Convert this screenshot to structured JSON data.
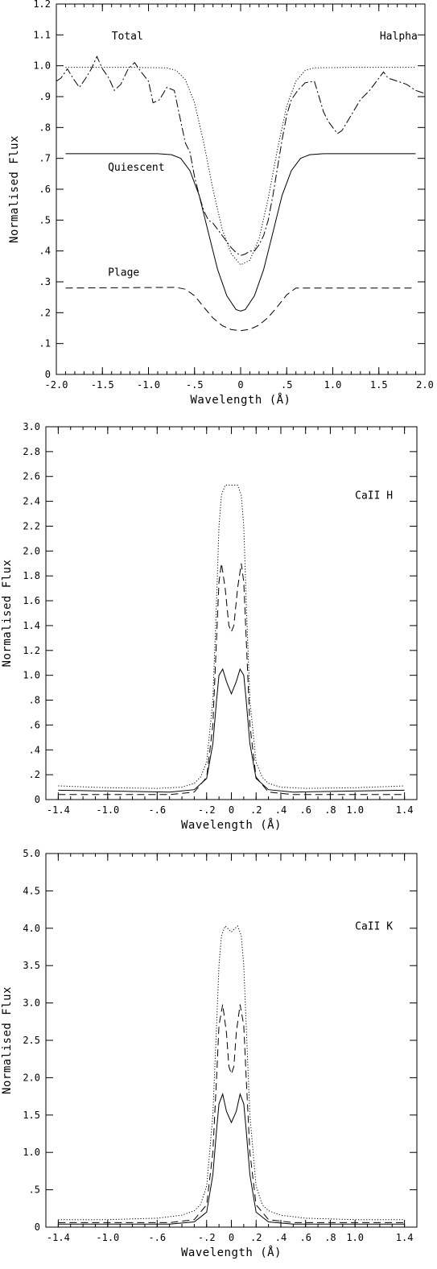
{
  "chart_data": [
    {
      "type": "line",
      "xlabel": "Wavelength (Å)",
      "ylabel": "Normalised Flux",
      "xlim": [
        -2.0,
        2.0
      ],
      "ylim": [
        0,
        1.2
      ],
      "grid": false,
      "xticks": [
        {
          "v": -2.0,
          "label": "-2.0"
        },
        {
          "v": -1.5,
          "label": "-1.5"
        },
        {
          "v": -1.0,
          "label": "-1.0"
        },
        {
          "v": -0.5,
          "label": "-.5"
        },
        {
          "v": 0,
          "label": "0"
        },
        {
          "v": 0.5,
          "label": ".5"
        },
        {
          "v": 1.0,
          "label": "1.0"
        },
        {
          "v": 1.5,
          "label": "1.5"
        },
        {
          "v": 2.0,
          "label": "2.0"
        }
      ],
      "yticks": [
        {
          "v": 0,
          "label": "0"
        },
        {
          "v": 0.1,
          "label": ".1"
        },
        {
          "v": 0.2,
          "label": ".2"
        },
        {
          "v": 0.3,
          "label": ".3"
        },
        {
          "v": 0.4,
          "label": ".4"
        },
        {
          "v": 0.5,
          "label": ".5"
        },
        {
          "v": 0.6,
          "label": ".6"
        },
        {
          "v": 0.7,
          "label": ".7"
        },
        {
          "v": 0.8,
          "label": ".8"
        },
        {
          "v": 0.9,
          "label": ".9"
        },
        {
          "v": 1.0,
          "label": "1.0"
        },
        {
          "v": 1.1,
          "label": "1.1"
        },
        {
          "v": 1.2,
          "label": "1.2"
        }
      ],
      "annotations": [
        {
          "text": "Total",
          "x": -1.4,
          "y": 1.085,
          "anchor": "start"
        },
        {
          "text": "Halpha",
          "x": 1.92,
          "y": 1.085,
          "anchor": "end"
        },
        {
          "text": "Quiescent",
          "x": -1.44,
          "y": 0.66,
          "anchor": "start"
        },
        {
          "text": "Plage",
          "x": -1.44,
          "y": 0.32,
          "anchor": "start"
        }
      ],
      "series": [
        {
          "style": "dotted",
          "x": [
            -1.9,
            -1.2,
            -0.8,
            -0.7,
            -0.6,
            -0.5,
            -0.4,
            -0.3,
            -0.2,
            -0.1,
            0,
            0.1,
            0.2,
            0.3,
            0.4,
            0.5,
            0.6,
            0.7,
            0.8,
            1.2,
            1.9
          ],
          "y": [
            0.995,
            0.995,
            0.993,
            0.985,
            0.955,
            0.88,
            0.75,
            0.6,
            0.47,
            0.39,
            0.355,
            0.37,
            0.44,
            0.57,
            0.73,
            0.87,
            0.95,
            0.985,
            0.993,
            0.995,
            0.995
          ]
        },
        {
          "style": "solid",
          "x": [
            -1.9,
            -0.9,
            -0.75,
            -0.65,
            -0.55,
            -0.45,
            -0.35,
            -0.25,
            -0.15,
            -0.05,
            0,
            0.05,
            0.15,
            0.25,
            0.35,
            0.45,
            0.55,
            0.65,
            0.75,
            0.9,
            1.9
          ],
          "y": [
            0.715,
            0.715,
            0.712,
            0.7,
            0.66,
            0.58,
            0.46,
            0.34,
            0.255,
            0.21,
            0.205,
            0.21,
            0.255,
            0.34,
            0.46,
            0.58,
            0.66,
            0.7,
            0.712,
            0.715,
            0.715
          ]
        },
        {
          "style": "dashed",
          "x": [
            -1.9,
            -0.7,
            -0.6,
            -0.5,
            -0.4,
            -0.3,
            -0.2,
            -0.1,
            0,
            0.1,
            0.2,
            0.3,
            0.4,
            0.5,
            0.6,
            1.9
          ],
          "y": [
            0.28,
            0.282,
            0.276,
            0.255,
            0.218,
            0.183,
            0.158,
            0.145,
            0.142,
            0.146,
            0.16,
            0.185,
            0.22,
            0.258,
            0.28,
            0.28
          ]
        },
        {
          "style": "dashdot",
          "x": [
            -2.0,
            -1.95,
            -1.88,
            -1.82,
            -1.75,
            -1.68,
            -1.62,
            -1.56,
            -1.5,
            -1.43,
            -1.37,
            -1.3,
            -1.22,
            -1.15,
            -1.08,
            -1.0,
            -0.95,
            -0.88,
            -0.8,
            -0.72,
            -0.65,
            -0.6,
            -0.55,
            -0.5,
            -0.45,
            -0.4,
            -0.35,
            -0.3,
            -0.25,
            -0.2,
            -0.15,
            -0.1,
            -0.05,
            0,
            0.05,
            0.1,
            0.15,
            0.2,
            0.25,
            0.3,
            0.35,
            0.4,
            0.45,
            0.5,
            0.55,
            0.62,
            0.7,
            0.8,
            0.9,
            0.95,
            1.0,
            1.05,
            1.1,
            1.2,
            1.3,
            1.4,
            1.5,
            1.55,
            1.6,
            1.7,
            1.8,
            1.9,
            2.0
          ],
          "y": [
            0.95,
            0.96,
            0.99,
            0.96,
            0.93,
            0.96,
            0.99,
            1.03,
            0.99,
            0.96,
            0.92,
            0.94,
            0.99,
            1.01,
            0.98,
            0.95,
            0.88,
            0.89,
            0.93,
            0.92,
            0.82,
            0.75,
            0.72,
            0.64,
            0.58,
            0.53,
            0.5,
            0.49,
            0.47,
            0.45,
            0.43,
            0.41,
            0.395,
            0.385,
            0.39,
            0.4,
            0.4,
            0.42,
            0.45,
            0.5,
            0.58,
            0.67,
            0.76,
            0.84,
            0.89,
            0.92,
            0.945,
            0.95,
            0.85,
            0.82,
            0.8,
            0.78,
            0.79,
            0.84,
            0.89,
            0.92,
            0.96,
            0.98,
            0.96,
            0.95,
            0.94,
            0.92,
            0.91
          ]
        }
      ]
    },
    {
      "type": "line",
      "xlabel": "Wavelength (Å)",
      "ylabel": "Normalised Flux",
      "xlim": [
        -1.5,
        1.5
      ],
      "ylim": [
        0,
        3.0
      ],
      "grid": false,
      "xticks": [
        {
          "v": -1.4,
          "label": "-1.4"
        },
        {
          "v": -1.0,
          "label": "-1.0"
        },
        {
          "v": -0.6,
          "label": "-.6"
        },
        {
          "v": -0.2,
          "label": "-.2"
        },
        {
          "v": 0,
          "label": "0"
        },
        {
          "v": 0.2,
          "label": ".2"
        },
        {
          "v": 0.4,
          "label": ".4"
        },
        {
          "v": 0.6,
          "label": ".6"
        },
        {
          "v": 0.8,
          "label": ".8"
        },
        {
          "v": 1.0,
          "label": "1.0"
        },
        {
          "v": 1.4,
          "label": "1.4"
        }
      ],
      "yticks": [
        {
          "v": 0,
          "label": "0"
        },
        {
          "v": 0.2,
          "label": ".2"
        },
        {
          "v": 0.4,
          "label": ".4"
        },
        {
          "v": 0.6,
          "label": ".6"
        },
        {
          "v": 0.8,
          "label": ".8"
        },
        {
          "v": 1.0,
          "label": "1.0"
        },
        {
          "v": 1.2,
          "label": "1.2"
        },
        {
          "v": 1.4,
          "label": "1.4"
        },
        {
          "v": 1.6,
          "label": "1.6"
        },
        {
          "v": 1.8,
          "label": "1.8"
        },
        {
          "v": 2.0,
          "label": "2.0"
        },
        {
          "v": 2.2,
          "label": "2.2"
        },
        {
          "v": 2.4,
          "label": "2.4"
        },
        {
          "v": 2.6,
          "label": "2.6"
        },
        {
          "v": 2.8,
          "label": "2.8"
        },
        {
          "v": 3.0,
          "label": "3.0"
        }
      ],
      "annotations": [
        {
          "text": "CaII H",
          "x": 1.0,
          "y": 2.42,
          "anchor": "start"
        }
      ],
      "series": [
        {
          "style": "dotted",
          "x": [
            -1.4,
            -1.0,
            -0.6,
            -0.4,
            -0.3,
            -0.25,
            -0.2,
            -0.15,
            -0.12,
            -0.1,
            -0.08,
            -0.05,
            0,
            0.05,
            0.08,
            0.1,
            0.12,
            0.15,
            0.2,
            0.25,
            0.3,
            0.4,
            0.6,
            1.0,
            1.4
          ],
          "y": [
            0.11,
            0.095,
            0.09,
            0.1,
            0.13,
            0.18,
            0.3,
            0.8,
            1.6,
            2.2,
            2.45,
            2.53,
            2.53,
            2.53,
            2.45,
            2.2,
            1.6,
            0.8,
            0.3,
            0.18,
            0.13,
            0.1,
            0.09,
            0.095,
            0.11
          ]
        },
        {
          "style": "dashed",
          "x": [
            -1.4,
            -0.5,
            -0.3,
            -0.2,
            -0.15,
            -0.12,
            -0.1,
            -0.08,
            -0.05,
            -0.02,
            0,
            0.02,
            0.05,
            0.08,
            0.1,
            0.12,
            0.15,
            0.2,
            0.3,
            0.5,
            1.4
          ],
          "y": [
            0.04,
            0.04,
            0.06,
            0.18,
            0.6,
            1.3,
            1.75,
            1.9,
            1.7,
            1.4,
            1.35,
            1.4,
            1.7,
            1.9,
            1.75,
            1.3,
            0.6,
            0.18,
            0.06,
            0.04,
            0.04
          ]
        },
        {
          "style": "solid",
          "x": [
            -1.4,
            -0.5,
            -0.3,
            -0.2,
            -0.15,
            -0.12,
            -0.1,
            -0.07,
            -0.04,
            0,
            0.04,
            0.07,
            0.1,
            0.12,
            0.15,
            0.2,
            0.3,
            0.5,
            1.4
          ],
          "y": [
            0.075,
            0.06,
            0.08,
            0.17,
            0.45,
            0.8,
            1.0,
            1.05,
            0.95,
            0.85,
            0.95,
            1.05,
            1.0,
            0.8,
            0.45,
            0.17,
            0.08,
            0.06,
            0.075
          ]
        }
      ]
    },
    {
      "type": "line",
      "xlabel": "Wavelength (Å)",
      "ylabel": "Normalised Flux",
      "xlim": [
        -1.5,
        1.5
      ],
      "ylim": [
        0,
        5.0
      ],
      "grid": false,
      "xticks": [
        {
          "v": -1.4,
          "label": "-1.4"
        },
        {
          "v": -1.0,
          "label": "-1.0"
        },
        {
          "v": -0.6,
          "label": "-.6"
        },
        {
          "v": -0.2,
          "label": "-.2"
        },
        {
          "v": 0,
          "label": "0"
        },
        {
          "v": 0.2,
          "label": ".2"
        },
        {
          "v": 0.4,
          "label": ".4"
        },
        {
          "v": 0.6,
          "label": ".6"
        },
        {
          "v": 0.8,
          "label": ".8"
        },
        {
          "v": 1.0,
          "label": "1.0"
        },
        {
          "v": 1.4,
          "label": "1.4"
        }
      ],
      "yticks": [
        {
          "v": 0,
          "label": "0"
        },
        {
          "v": 0.5,
          "label": ".5"
        },
        {
          "v": 1.0,
          "label": "1.0"
        },
        {
          "v": 1.5,
          "label": "1.5"
        },
        {
          "v": 2.0,
          "label": "2.0"
        },
        {
          "v": 2.5,
          "label": "2.5"
        },
        {
          "v": 3.0,
          "label": "3.0"
        },
        {
          "v": 3.5,
          "label": "3.5"
        },
        {
          "v": 4.0,
          "label": "4.0"
        },
        {
          "v": 4.5,
          "label": "4.5"
        },
        {
          "v": 5.0,
          "label": "5.0"
        }
      ],
      "annotations": [
        {
          "text": "CaII K",
          "x": 1.0,
          "y": 3.98,
          "anchor": "start"
        }
      ],
      "series": [
        {
          "style": "dotted",
          "x": [
            -1.4,
            -1.0,
            -0.6,
            -0.4,
            -0.3,
            -0.25,
            -0.2,
            -0.15,
            -0.12,
            -0.1,
            -0.08,
            -0.05,
            0,
            0.05,
            0.08,
            0.1,
            0.12,
            0.15,
            0.2,
            0.25,
            0.3,
            0.4,
            0.6,
            1.0,
            1.4
          ],
          "y": [
            0.1,
            0.1,
            0.12,
            0.16,
            0.22,
            0.3,
            0.55,
            1.5,
            2.7,
            3.5,
            3.9,
            4.03,
            3.95,
            4.03,
            3.9,
            3.5,
            2.7,
            1.5,
            0.55,
            0.3,
            0.22,
            0.16,
            0.12,
            0.1,
            0.1
          ]
        },
        {
          "style": "dashed",
          "x": [
            -1.4,
            -0.5,
            -0.3,
            -0.2,
            -0.15,
            -0.12,
            -0.1,
            -0.07,
            -0.04,
            -0.02,
            0,
            0.02,
            0.04,
            0.07,
            0.1,
            0.12,
            0.15,
            0.2,
            0.3,
            0.5,
            1.4
          ],
          "y": [
            0.06,
            0.06,
            0.1,
            0.3,
            1.0,
            2.0,
            2.7,
            2.98,
            2.6,
            2.15,
            2.05,
            2.15,
            2.6,
            2.98,
            2.7,
            2.0,
            1.0,
            0.3,
            0.1,
            0.06,
            0.06
          ]
        },
        {
          "style": "solid",
          "x": [
            -1.4,
            -0.5,
            -0.3,
            -0.2,
            -0.15,
            -0.12,
            -0.1,
            -0.07,
            -0.04,
            0,
            0.04,
            0.07,
            0.1,
            0.12,
            0.15,
            0.2,
            0.3,
            0.5,
            1.4
          ],
          "y": [
            0.04,
            0.04,
            0.07,
            0.2,
            0.7,
            1.3,
            1.65,
            1.78,
            1.55,
            1.4,
            1.55,
            1.78,
            1.65,
            1.3,
            0.7,
            0.2,
            0.07,
            0.04,
            0.04
          ]
        }
      ]
    }
  ]
}
